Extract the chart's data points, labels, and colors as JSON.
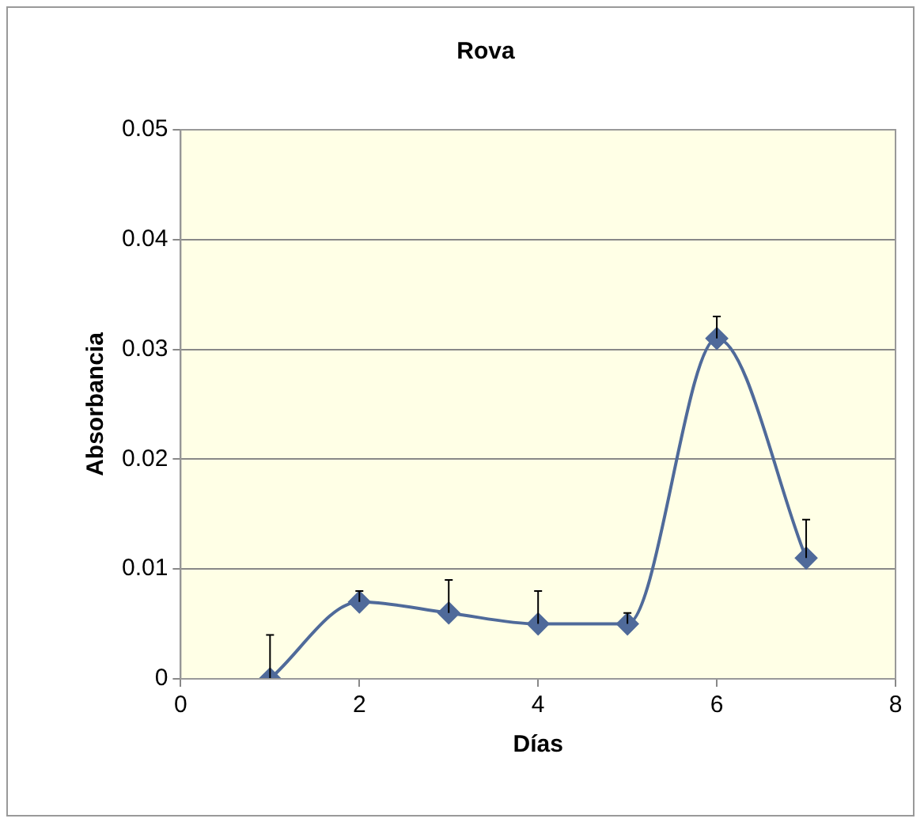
{
  "chart_data": {
    "type": "line",
    "title": "Rova",
    "xlabel": "Días",
    "ylabel": "Absorbancia",
    "x": [
      1,
      2,
      3,
      4,
      5,
      6,
      7
    ],
    "series": [
      {
        "color": "#4f6a9a",
        "values": [
          0,
          0.007,
          0.006,
          0.005,
          0.005,
          0.031,
          0.011
        ],
        "errors": [
          [
            0,
            0.004
          ],
          [
            0.007,
            0.008
          ],
          [
            0.006,
            0.009
          ],
          [
            0.005,
            0.008
          ],
          [
            0.005,
            0.006
          ],
          [
            0.031,
            0.033
          ],
          [
            0.011,
            0.0145
          ]
        ]
      }
    ],
    "xlim": [
      0,
      8
    ],
    "xticks": [
      0,
      2,
      4,
      6,
      8
    ],
    "ylim": [
      0,
      0.05
    ],
    "yticks": [
      0,
      0.01,
      0.02,
      0.03,
      0.04,
      0.05
    ],
    "grid": "y",
    "legend": false,
    "marker": "diamond",
    "line_style": "solid"
  }
}
